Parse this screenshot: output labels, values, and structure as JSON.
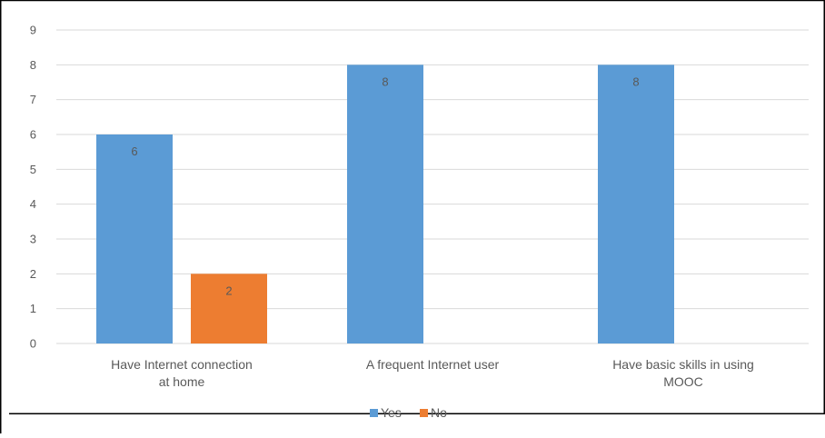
{
  "chart_data": {
    "type": "bar",
    "categories": [
      [
        "Have Internet connection",
        "at home"
      ],
      [
        "A frequent Internet user"
      ],
      [
        "Have basic skills in using",
        "MOOC"
      ]
    ],
    "series": [
      {
        "name": "Yes",
        "color": "#5B9BD5",
        "values": [
          6,
          8,
          8
        ]
      },
      {
        "name": "No",
        "color": "#ED7D31",
        "values": [
          2,
          null,
          null
        ]
      }
    ],
    "ylim": [
      0,
      9
    ],
    "yticks": [
      "0",
      "1",
      "2",
      "3",
      "4",
      "5",
      "6",
      "7",
      "8",
      "9"
    ],
    "data_labels": true,
    "grid": true,
    "legend_position": "bottom"
  },
  "colors": {
    "text": "#595959",
    "grid": "#D9D9D9",
    "border": "#000000"
  }
}
